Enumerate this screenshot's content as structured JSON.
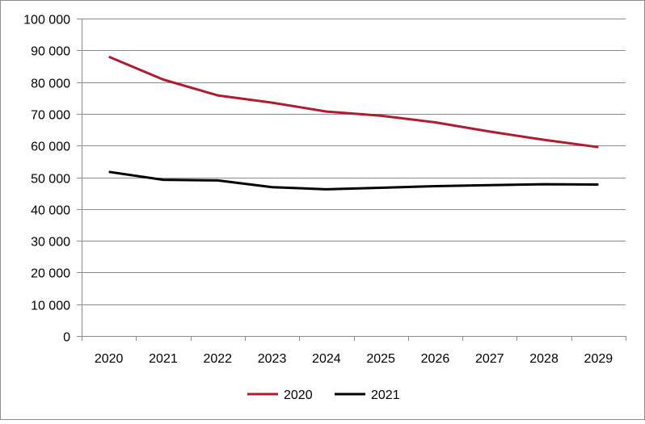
{
  "chart_data": {
    "type": "line",
    "title": "",
    "xlabel": "",
    "ylabel": "",
    "categories": [
      "2020",
      "2021",
      "2022",
      "2023",
      "2024",
      "2025",
      "2026",
      "2027",
      "2028",
      "2029"
    ],
    "series": [
      {
        "name": "2020",
        "color": "#b01c2e",
        "values": [
          88000,
          80800,
          75800,
          73500,
          70700,
          69400,
          67300,
          64400,
          61800,
          59500
        ]
      },
      {
        "name": "2021",
        "color": "#000000",
        "values": [
          51700,
          49200,
          49000,
          46900,
          46200,
          46700,
          47200,
          47500,
          47800,
          47700
        ]
      }
    ],
    "ylim": [
      0,
      100000
    ],
    "yticks": [
      {
        "value": 0,
        "label": "0"
      },
      {
        "value": 10000,
        "label": "10 000"
      },
      {
        "value": 20000,
        "label": "20 000"
      },
      {
        "value": 30000,
        "label": "30 000"
      },
      {
        "value": 40000,
        "label": "40 000"
      },
      {
        "value": 50000,
        "label": "50 000"
      },
      {
        "value": 60000,
        "label": "60 000"
      },
      {
        "value": 70000,
        "label": "70 000"
      },
      {
        "value": 80000,
        "label": "80 000"
      },
      {
        "value": 90000,
        "label": "90 000"
      },
      {
        "value": 100000,
        "label": "100 000"
      }
    ],
    "grid": true,
    "legend_position": "bottom-center",
    "gridline_color": "#8c8c8c",
    "axis_color": "#8c8c8c"
  }
}
